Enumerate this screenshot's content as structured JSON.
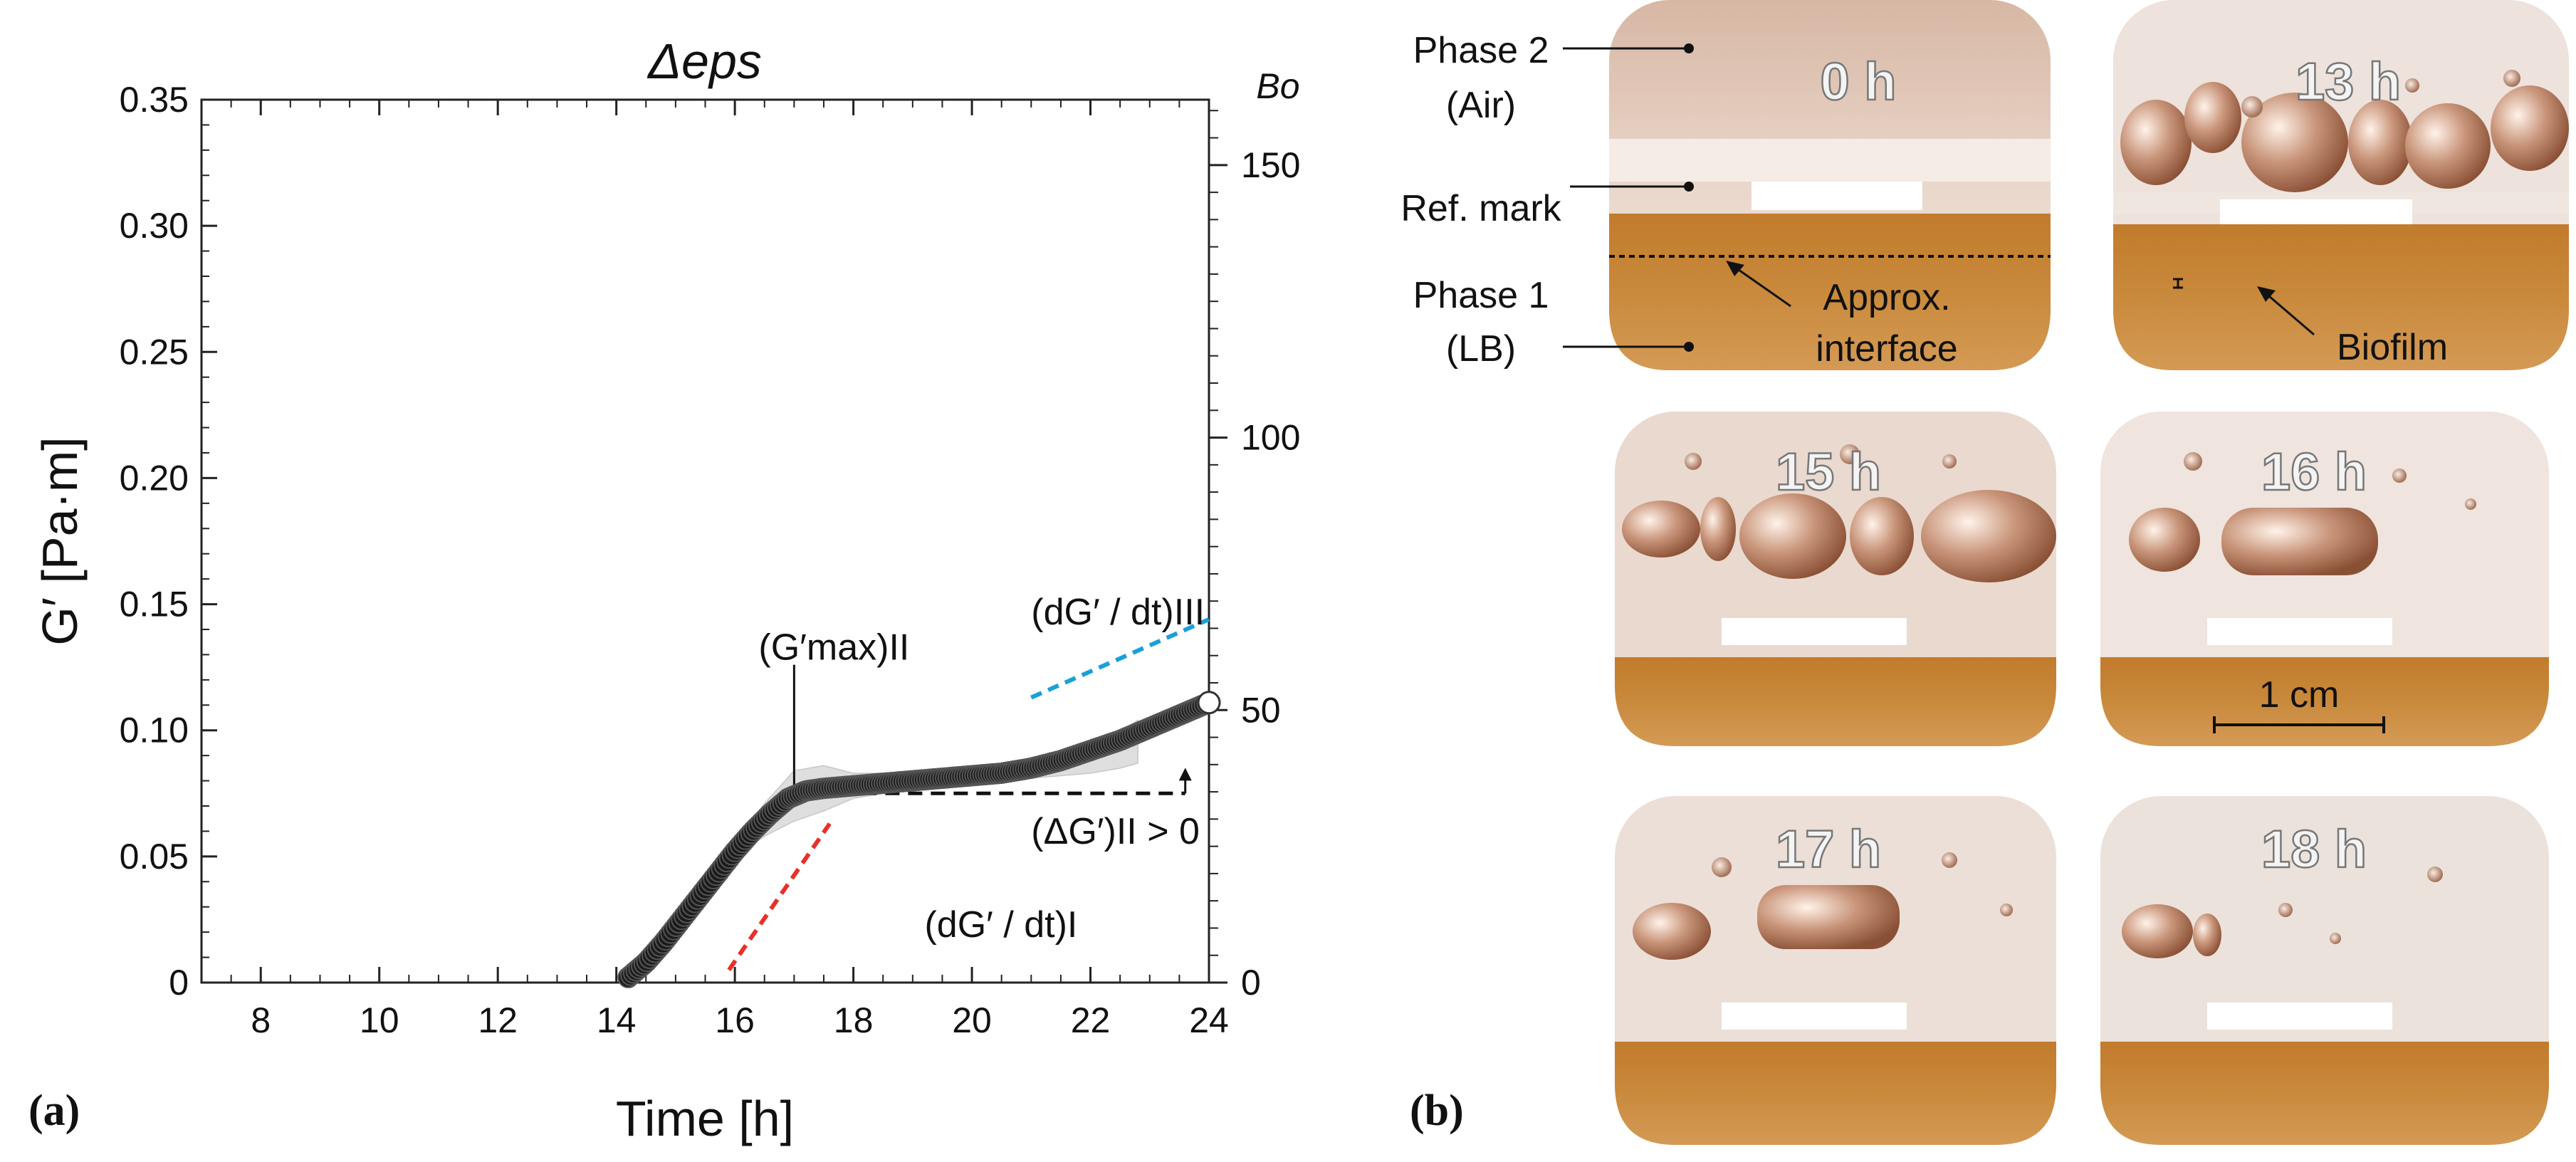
{
  "panel_a_label": "(a)",
  "panel_b_label": "(b)",
  "chart_data": {
    "type": "scatter",
    "title": "Δeps",
    "xlabel": "Time [h]",
    "ylabel": "G′ [Pa·m]",
    "y2label": "Bo",
    "xlim": [
      7,
      24
    ],
    "ylim": [
      0,
      0.35
    ],
    "y2lim": [
      0,
      162
    ],
    "xticks": [
      "8",
      "10",
      "12",
      "14",
      "16",
      "18",
      "20",
      "22",
      "24"
    ],
    "yticks": [
      "0",
      "0.05",
      "0.10",
      "0.15",
      "0.20",
      "0.25",
      "0.30",
      "0.35"
    ],
    "y2ticks": [
      "0",
      "50",
      "100",
      "150"
    ],
    "series": [
      {
        "name": "G′ mean",
        "x": [
          14.2,
          14.5,
          14.8,
          15.1,
          15.4,
          15.7,
          16.0,
          16.3,
          16.6,
          16.9,
          17.2,
          17.5,
          18.0,
          18.5,
          19.0,
          19.5,
          20.0,
          20.5,
          21.0,
          21.5,
          22.0,
          22.5,
          23.0,
          23.5,
          24.0
        ],
        "y": [
          0.002,
          0.008,
          0.016,
          0.025,
          0.034,
          0.043,
          0.052,
          0.06,
          0.067,
          0.073,
          0.076,
          0.077,
          0.078,
          0.079,
          0.08,
          0.081,
          0.082,
          0.083,
          0.085,
          0.088,
          0.092,
          0.096,
          0.101,
          0.106,
          0.111
        ]
      },
      {
        "name": "G′ upper band",
        "x": [
          16.0,
          16.5,
          17.0,
          17.5,
          18.0,
          19.0,
          20.0,
          21.0,
          22.0,
          22.5,
          22.8
        ],
        "y": [
          0.056,
          0.071,
          0.084,
          0.086,
          0.083,
          0.083,
          0.084,
          0.087,
          0.094,
          0.099,
          0.104
        ]
      },
      {
        "name": "G′ lower band",
        "x": [
          16.0,
          16.5,
          17.0,
          17.5,
          18.0,
          19.0,
          20.0,
          21.0,
          22.0,
          22.5,
          22.8
        ],
        "y": [
          0.05,
          0.058,
          0.064,
          0.068,
          0.073,
          0.077,
          0.08,
          0.081,
          0.083,
          0.085,
          0.087
        ]
      }
    ],
    "guides": {
      "red_slope": {
        "x": [
          15.9,
          17.6
        ],
        "y": [
          0.005,
          0.063
        ],
        "color": "#e8302a"
      },
      "blue_slope": {
        "x": [
          21.0,
          24.0
        ],
        "y": [
          0.113,
          0.144
        ],
        "color": "#1aa0d8"
      },
      "baseline": {
        "x": [
          17.0,
          23.6
        ],
        "y": [
          0.075,
          0.075
        ]
      },
      "gmax_line": {
        "x": [
          17.0,
          17.0
        ],
        "y": [
          0.076,
          0.126
        ]
      },
      "arrow": {
        "x": [
          23.6,
          23.6
        ],
        "y": [
          0.075,
          0.084
        ]
      }
    },
    "annotations": {
      "gmax": {
        "text": "(G′max)II",
        "x": 16.4,
        "y": 0.128
      },
      "delta": {
        "text": "(ΔG′)II > 0",
        "x": 21.0,
        "y": 0.055
      },
      "slope_i": {
        "text": "(dG′ / dt)I",
        "x": 19.2,
        "y": 0.018
      },
      "slope_iii": {
        "text": "(dG′ / dt)III",
        "x": 21.0,
        "y": 0.142
      }
    },
    "colors": {
      "marker_fill": "#1b1b1b",
      "band": "#c4c4c4"
    }
  },
  "photo_panel": {
    "panels": [
      {
        "time": "0 h"
      },
      {
        "time": "13 h"
      },
      {
        "time": "15 h"
      },
      {
        "time": "16 h"
      },
      {
        "time": "17 h"
      },
      {
        "time": "18 h"
      }
    ],
    "labels": {
      "phase2_line1": "Phase 2",
      "phase2_line2": "(Air)",
      "ref_mark": "Ref. mark",
      "phase1_line1": "Phase 1",
      "phase1_line2": "(LB)",
      "approx_line1": "Approx.",
      "approx_line2": "interface",
      "biofilm": "Biofilm",
      "scale_bar": "1 cm"
    }
  }
}
